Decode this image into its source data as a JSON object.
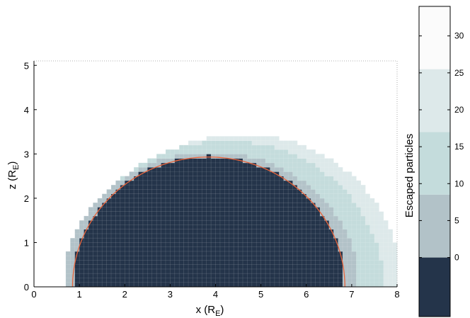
{
  "chart_data": {
    "type": "heatmap",
    "xlabel": "x (R",
    "xlabel_sub": "E",
    "xlabel_close": ")",
    "ylabel": "z (R",
    "ylabel_sub": "E",
    "ylabel_close": ")",
    "xlim": [
      0,
      8
    ],
    "ylim": [
      0,
      5.1
    ],
    "x_ticks": [
      "0",
      "1",
      "2",
      "3",
      "4",
      "5",
      "6",
      "7",
      "8"
    ],
    "y_ticks": [
      "0",
      "1",
      "2",
      "3",
      "4",
      "5"
    ],
    "colorbar": {
      "label": "Escaped particles",
      "range": [
        -8,
        34
      ],
      "ticks": [
        "0",
        "5",
        "10",
        "15",
        "20",
        "25",
        "30"
      ],
      "levels": [
        {
          "from": -8,
          "to": 0,
          "color": "#24344a"
        },
        {
          "from": 0,
          "to": 8.5,
          "color": "#b2c2c8"
        },
        {
          "from": 8.5,
          "to": 17,
          "color": "#c4dcdc"
        },
        {
          "from": 17,
          "to": 25.5,
          "color": "#dde9ea"
        },
        {
          "from": 25.5,
          "to": 34,
          "color": "#fbfbfb"
        }
      ]
    },
    "grid_cell_size": 0.1,
    "regions": [
      {
        "level": 3,
        "type": "semi_ellipse",
        "center": [
          4.6,
          0
        ],
        "a": 3.5,
        "b": 3.45
      },
      {
        "level": 2,
        "type": "semi_ellipse",
        "center": [
          4.25,
          0
        ],
        "a": 3.45,
        "b": 3.3
      },
      {
        "level": 1,
        "type": "semi_ellipse",
        "center": [
          3.9,
          0
        ],
        "a": 3.25,
        "b": 3.05
      },
      {
        "level": 0,
        "type": "semi_ellipse",
        "center": [
          3.85,
          0
        ],
        "a": 3.0,
        "b": 2.95,
        "x_min_bottom": 0.95,
        "x_max_bottom": 6.8
      }
    ],
    "boundary_curve": {
      "type": "semi_ellipse",
      "center": [
        3.85,
        0
      ],
      "a": 3.0,
      "b": 2.93,
      "color": "#e8643c"
    }
  }
}
